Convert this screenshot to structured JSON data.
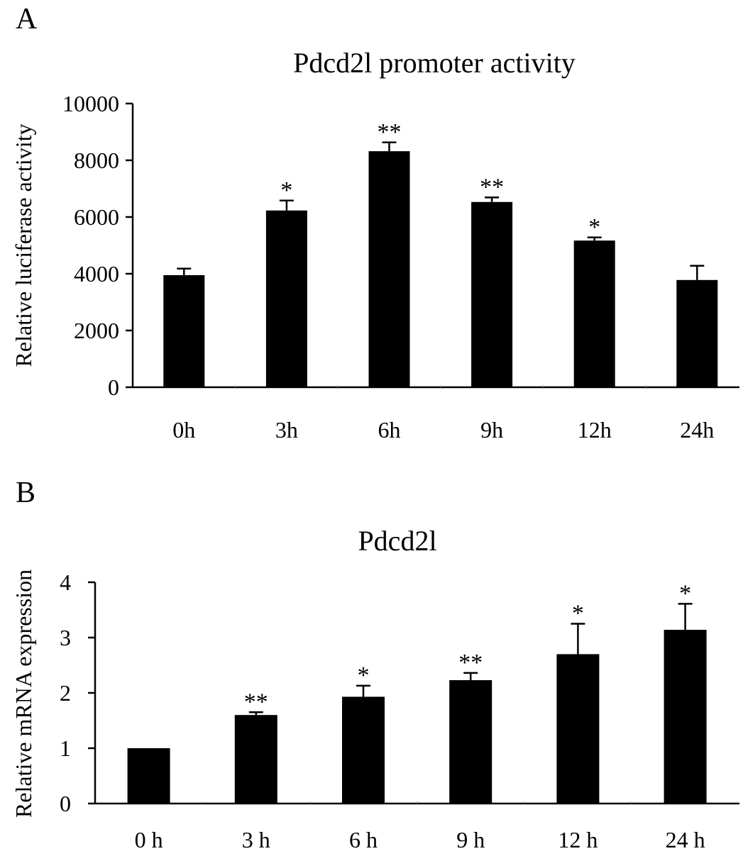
{
  "chart_data": [
    {
      "panel_label": "A",
      "type": "bar",
      "title": "Pdcd2l promoter activity",
      "xlabel": "",
      "ylabel": "Relative luciferase activity",
      "categories": [
        "0h",
        "3h",
        "6h",
        "9h",
        "12h",
        "24h"
      ],
      "values": [
        3950,
        6230,
        8320,
        6530,
        5170,
        3780
      ],
      "errors": [
        230,
        350,
        310,
        160,
        110,
        500
      ],
      "significance": [
        "",
        "*",
        "**",
        "**",
        "*",
        ""
      ],
      "ylim": [
        0,
        10000
      ],
      "yticks": [
        0,
        2000,
        4000,
        6000,
        8000,
        10000
      ],
      "grid": false,
      "bar_color": "#000000"
    },
    {
      "panel_label": "B",
      "type": "bar",
      "title": "Pdcd2l",
      "xlabel": "",
      "ylabel": "Relative mRNA expression",
      "categories": [
        "0 h",
        "3 h",
        "6 h",
        "9 h",
        "12 h",
        "24 h"
      ],
      "values": [
        1.0,
        1.6,
        1.93,
        2.23,
        2.7,
        3.14
      ],
      "errors": [
        0.0,
        0.05,
        0.2,
        0.13,
        0.55,
        0.47
      ],
      "significance": [
        "",
        "**",
        "*",
        "**",
        "*",
        "*"
      ],
      "ylim": [
        0,
        4
      ],
      "yticks": [
        0,
        1,
        2,
        3,
        4
      ],
      "grid": false,
      "bar_color": "#000000"
    }
  ]
}
